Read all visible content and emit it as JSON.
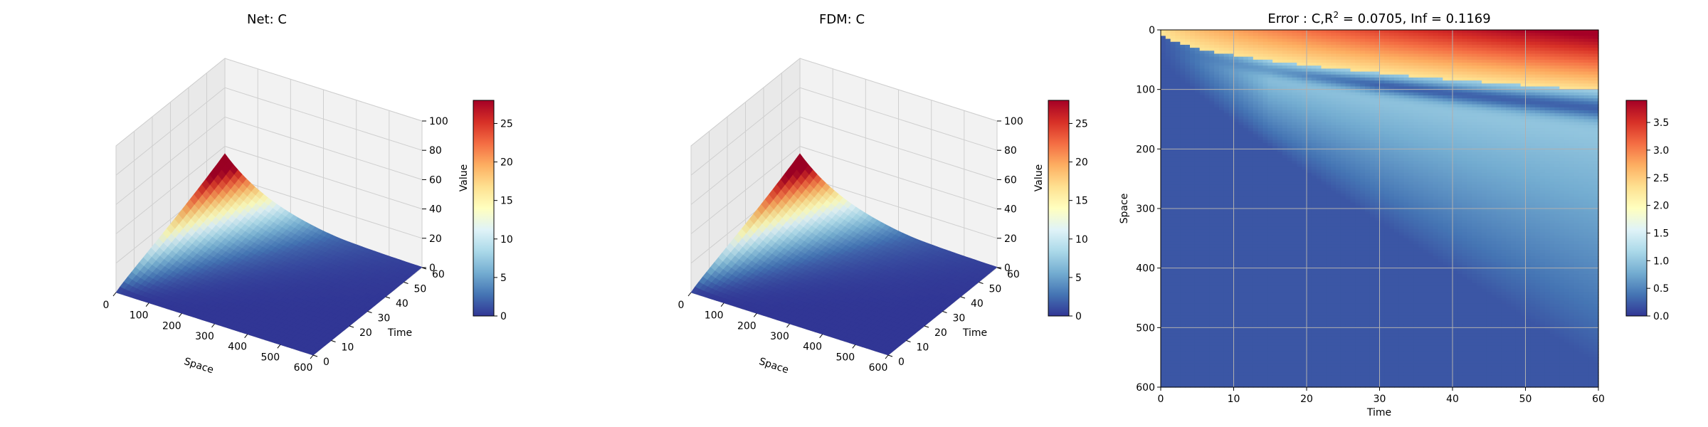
{
  "chart_data": [
    {
      "type": "surface3d",
      "title": "Net: C",
      "xlabel": "Space",
      "ylabel": "Time",
      "zlabel": "",
      "xlim": [
        0,
        600
      ],
      "ylim": [
        0,
        60
      ],
      "zlim": [
        0,
        100
      ],
      "x_ticks": [
        "0",
        "100",
        "200",
        "300",
        "400",
        "500",
        "600"
      ],
      "y_ticks": [
        "0",
        "10",
        "20",
        "30",
        "40",
        "50",
        "60"
      ],
      "z_ticks": [
        "0",
        "20",
        "40",
        "60",
        "80",
        "100"
      ],
      "colorbar": {
        "label": "Value",
        "min": 0,
        "max": 28,
        "ticks": [
          "0",
          "5",
          "10",
          "15",
          "20",
          "25"
        ],
        "colormap": "RdYlBu_r"
      },
      "surface_peak": 28,
      "grid": true
    },
    {
      "type": "surface3d",
      "title": "FDM: C",
      "xlabel": "Space",
      "ylabel": "Time",
      "zlabel": "",
      "xlim": [
        0,
        600
      ],
      "ylim": [
        0,
        60
      ],
      "zlim": [
        0,
        100
      ],
      "x_ticks": [
        "0",
        "100",
        "200",
        "300",
        "400",
        "500",
        "600"
      ],
      "y_ticks": [
        "0",
        "10",
        "20",
        "30",
        "40",
        "50",
        "60"
      ],
      "z_ticks": [
        "0",
        "20",
        "40",
        "60",
        "80",
        "100"
      ],
      "colorbar": {
        "label": "Value",
        "min": 0,
        "max": 28,
        "ticks": [
          "0",
          "5",
          "10",
          "15",
          "20",
          "25"
        ],
        "colormap": "RdYlBu_r"
      },
      "surface_peak": 28,
      "grid": true
    },
    {
      "type": "heatmap",
      "title_prefix": "Error : C,R",
      "title_sup": "2",
      "title_suffix": " = 0.0705, Inf = 0.1169",
      "xlabel": "Time",
      "ylabel": "Space",
      "xlim": [
        0,
        60
      ],
      "ylim": [
        600,
        0
      ],
      "x_ticks": [
        "0",
        "10",
        "20",
        "30",
        "40",
        "50",
        "60"
      ],
      "y_ticks": [
        "0",
        "100",
        "200",
        "300",
        "400",
        "500",
        "600"
      ],
      "colorbar": {
        "min": 0,
        "max": 3.9,
        "ticks": [
          "0.0",
          "0.5",
          "1.0",
          "1.5",
          "2.0",
          "2.5",
          "3.0",
          "3.5"
        ],
        "colormap": "RdYlBu_r"
      },
      "grid": true
    }
  ]
}
